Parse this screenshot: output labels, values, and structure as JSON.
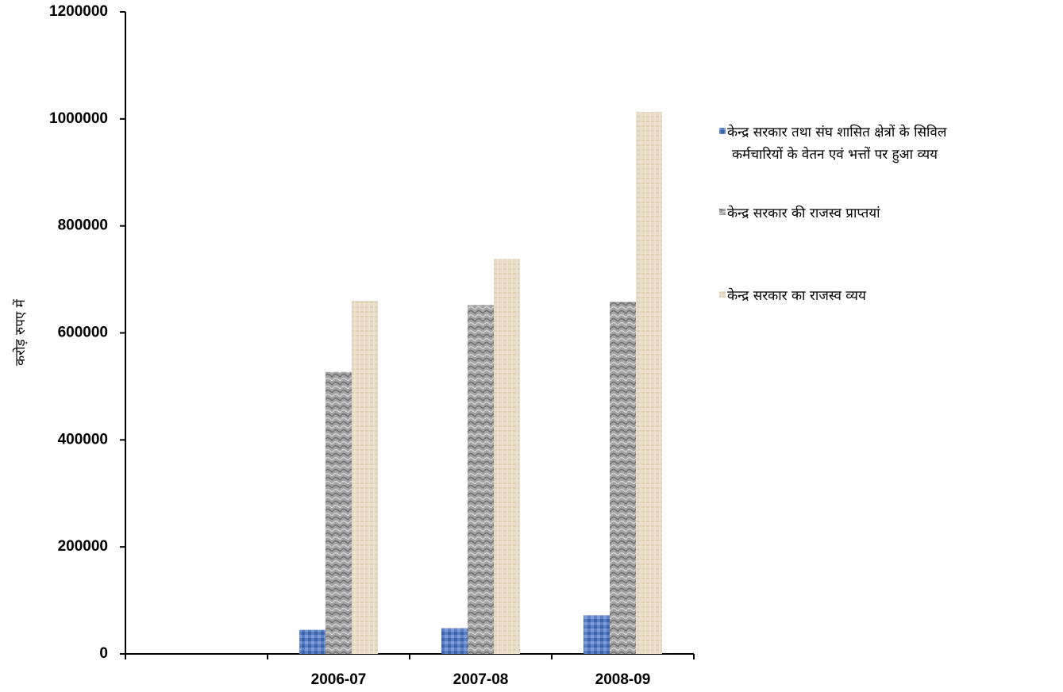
{
  "chart_data": {
    "type": "bar",
    "title": "",
    "xlabel": "",
    "ylabel": "करोड़ रुपए में",
    "categories": [
      "",
      "2006-07",
      "2007-08",
      "2008-09"
    ],
    "ylim": [
      0,
      1200000
    ],
    "yticks": [
      0,
      200000,
      400000,
      600000,
      800000,
      1000000,
      1200000
    ],
    "grid": false,
    "legend_position": "right",
    "series": [
      {
        "name": "केन्द्र सरकार तथा संघ शासित क्षेत्रों के सिविल कर्मचारियों के वेतन एवं भत्तों पर हुआ व्यय",
        "legend_lines": [
          "केन्द्र सरकार तथा संघ शासित क्षेत्रों के सिविल",
          "कर्मचारियों के वेतन एवं भत्तों पर हुआ व्यय"
        ],
        "color": "#5b7fc4",
        "values": [
          null,
          45000,
          48000,
          72000
        ]
      },
      {
        "name": "केन्द्र सरकार की राजस्व प्राप्तयां",
        "legend_lines": [
          "केन्द्र सरकार की राजस्व प्राप्तयां"
        ],
        "color": "#9a9a9a",
        "values": [
          null,
          527000,
          652000,
          658000
        ]
      },
      {
        "name": "केन्द्र सरकार का राजस्व व्यय",
        "legend_lines": [
          "केन्द्र सरकार का राजस्व व्यय"
        ],
        "color": "#e6d8c0",
        "values": [
          null,
          660000,
          738000,
          1013000
        ]
      }
    ]
  }
}
